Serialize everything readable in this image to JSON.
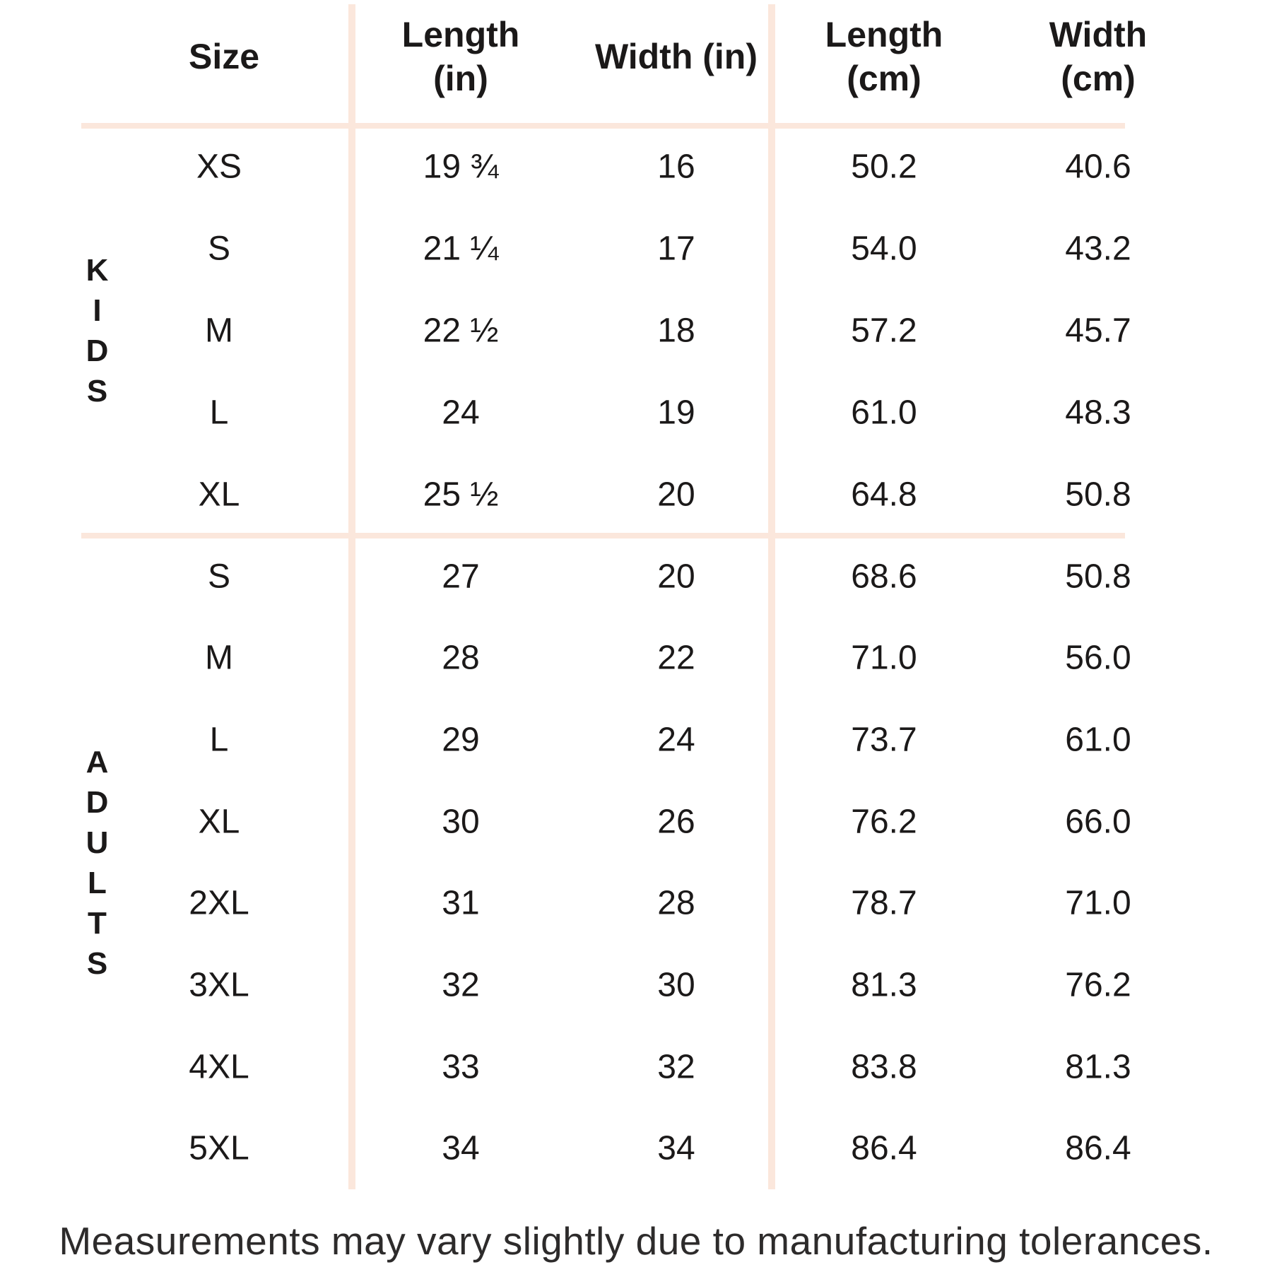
{
  "colors": {
    "background": "#ffffff",
    "divider": "#fbe7dc",
    "text": "#1b1919",
    "footer_text": "#2d2b2b"
  },
  "table": {
    "headers": [
      {
        "id": "size",
        "label": "Size",
        "lines": [
          "Size"
        ]
      },
      {
        "id": "length_in",
        "label": "Length (in)",
        "lines": [
          "Length",
          "(in)"
        ]
      },
      {
        "id": "width_in",
        "label": "Width (in)",
        "lines": [
          "Width (in)"
        ]
      },
      {
        "id": "length_cm",
        "label": "Length (cm)",
        "lines": [
          "Length",
          "(cm)"
        ]
      },
      {
        "id": "width_cm",
        "label": "Width (cm)",
        "lines": [
          "Width",
          "(cm)"
        ]
      }
    ],
    "groups": [
      {
        "label": "KIDS",
        "rows": [
          {
            "size": "XS",
            "length_in": "19 ¾",
            "width_in": "16",
            "length_cm": "50.2",
            "width_cm": "40.6"
          },
          {
            "size": "S",
            "length_in": "21 ¼",
            "width_in": "17",
            "length_cm": "54.0",
            "width_cm": "43.2"
          },
          {
            "size": "M",
            "length_in": "22 ½",
            "width_in": "18",
            "length_cm": "57.2",
            "width_cm": "45.7"
          },
          {
            "size": "L",
            "length_in": "24",
            "width_in": "19",
            "length_cm": "61.0",
            "width_cm": "48.3"
          },
          {
            "size": "XL",
            "length_in": "25 ½",
            "width_in": "20",
            "length_cm": "64.8",
            "width_cm": "50.8"
          }
        ]
      },
      {
        "label": "ADULTS",
        "rows": [
          {
            "size": "S",
            "length_in": "27",
            "width_in": "20",
            "length_cm": "68.6",
            "width_cm": "50.8"
          },
          {
            "size": "M",
            "length_in": "28",
            "width_in": "22",
            "length_cm": "71.0",
            "width_cm": "56.0"
          },
          {
            "size": "L",
            "length_in": "29",
            "width_in": "24",
            "length_cm": "73.7",
            "width_cm": "61.0"
          },
          {
            "size": "XL",
            "length_in": "30",
            "width_in": "26",
            "length_cm": "76.2",
            "width_cm": "66.0"
          },
          {
            "size": "2XL",
            "length_in": "31",
            "width_in": "28",
            "length_cm": "78.7",
            "width_cm": "71.0"
          },
          {
            "size": "3XL",
            "length_in": "32",
            "width_in": "30",
            "length_cm": "81.3",
            "width_cm": "76.2"
          },
          {
            "size": "4XL",
            "length_in": "33",
            "width_in": "32",
            "length_cm": "83.8",
            "width_cm": "81.3"
          },
          {
            "size": "5XL",
            "length_in": "34",
            "width_in": "34",
            "length_cm": "86.4",
            "width_cm": "86.4"
          }
        ]
      }
    ]
  },
  "footer": {
    "note": "Measurements may vary slightly due to manufacturing tolerances."
  }
}
